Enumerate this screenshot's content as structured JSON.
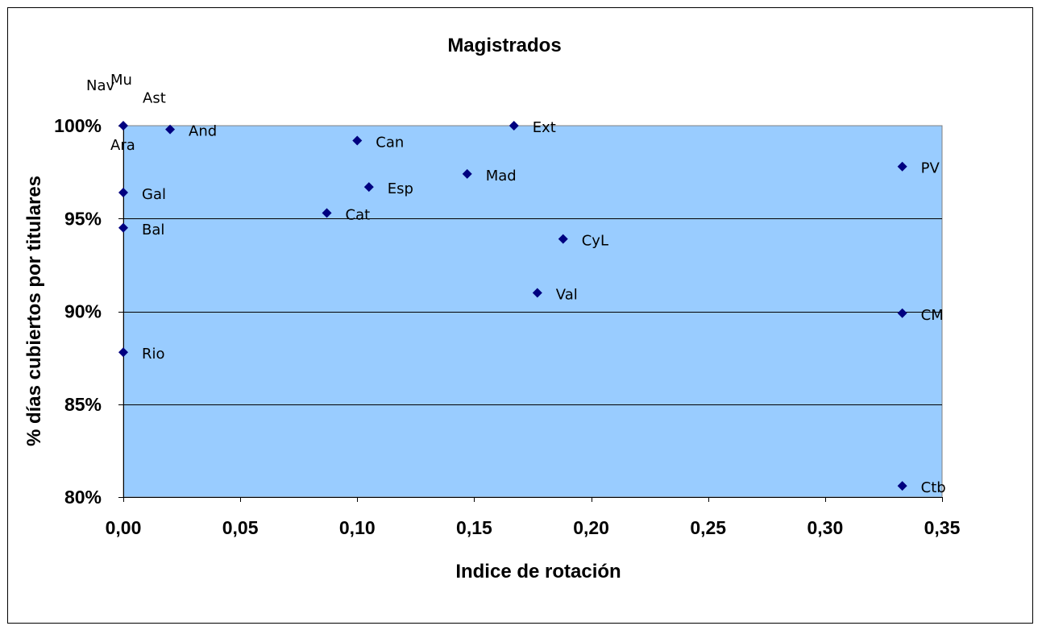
{
  "chart_data": {
    "type": "scatter",
    "title": "Magistrados",
    "xlabel": "Indice de rotación",
    "ylabel": "% días cubiertos por titulares",
    "xlim": [
      0,
      0.35
    ],
    "ylim": [
      0.8,
      1.0
    ],
    "x_ticks": [
      {
        "value": 0.0,
        "label": "0,00"
      },
      {
        "value": 0.05,
        "label": "0,05"
      },
      {
        "value": 0.1,
        "label": "0,10"
      },
      {
        "value": 0.15,
        "label": "0,15"
      },
      {
        "value": 0.2,
        "label": "0,20"
      },
      {
        "value": 0.25,
        "label": "0,25"
      },
      {
        "value": 0.3,
        "label": "0,30"
      },
      {
        "value": 0.35,
        "label": "0,35"
      }
    ],
    "y_ticks": [
      {
        "value": 0.8,
        "label": "80%"
      },
      {
        "value": 0.85,
        "label": "85%"
      },
      {
        "value": 0.9,
        "label": "90%"
      },
      {
        "value": 0.95,
        "label": "95%"
      },
      {
        "value": 1.0,
        "label": "100%"
      }
    ],
    "grid": "horizontal",
    "legend": "none",
    "colors": {
      "plot_background": "#99ccff",
      "marker": "#000080"
    },
    "points": [
      {
        "label": "Nav",
        "x": 0.0,
        "y": 1.0,
        "label_pos": "above-left"
      },
      {
        "label": "Mu",
        "x": 0.0,
        "y": 1.0,
        "label_pos": "above"
      },
      {
        "label": "Ara",
        "x": 0.0,
        "y": 1.0,
        "label_pos": "below"
      },
      {
        "label": "Ast",
        "x": 0.02,
        "y": 0.998,
        "label_pos": "above"
      },
      {
        "label": "And",
        "x": 0.02,
        "y": 0.998,
        "label_pos": "right"
      },
      {
        "label": "Can",
        "x": 0.1,
        "y": 0.992,
        "label_pos": "right"
      },
      {
        "label": "Ext",
        "x": 0.167,
        "y": 1.0,
        "label_pos": "right"
      },
      {
        "label": "Mad",
        "x": 0.147,
        "y": 0.974,
        "label_pos": "right"
      },
      {
        "label": "Esp",
        "x": 0.105,
        "y": 0.967,
        "label_pos": "right"
      },
      {
        "label": "Gal",
        "x": 0.0,
        "y": 0.964,
        "label_pos": "right"
      },
      {
        "label": "PV",
        "x": 0.333,
        "y": 0.978,
        "label_pos": "right"
      },
      {
        "label": "Cat",
        "x": 0.087,
        "y": 0.953,
        "label_pos": "right"
      },
      {
        "label": "Bal",
        "x": 0.0,
        "y": 0.945,
        "label_pos": "right"
      },
      {
        "label": "CyL",
        "x": 0.188,
        "y": 0.939,
        "label_pos": "right"
      },
      {
        "label": "Val",
        "x": 0.177,
        "y": 0.91,
        "label_pos": "right"
      },
      {
        "label": "CM",
        "x": 0.333,
        "y": 0.899,
        "label_pos": "right"
      },
      {
        "label": "Rio",
        "x": 0.0,
        "y": 0.878,
        "label_pos": "right"
      },
      {
        "label": "Ctb",
        "x": 0.333,
        "y": 0.806,
        "label_pos": "right"
      }
    ]
  }
}
